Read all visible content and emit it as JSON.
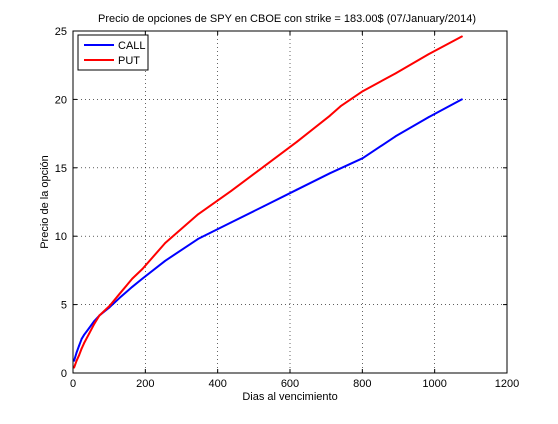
{
  "chart_data": {
    "type": "line",
    "title": "Precio de opciones de SPY en CBOE con strike = 183.00$  (07/January/2014)",
    "xlabel": "Dias al vencimiento",
    "ylabel": "Precio de la opción",
    "xlim": [
      0,
      1200
    ],
    "ylim": [
      0,
      25
    ],
    "xticks": [
      0,
      200,
      400,
      600,
      800,
      1000,
      1200
    ],
    "yticks": [
      0,
      5,
      10,
      15,
      20,
      25
    ],
    "grid": true,
    "legend_position": "top-left",
    "series": [
      {
        "name": "CALL",
        "color": "#0000ff",
        "x": [
          3,
          10,
          17,
          24,
          31,
          45,
          59,
          73,
          101,
          129,
          164,
          192,
          255,
          346,
          437,
          528,
          619,
          710,
          801,
          892,
          983,
          1075
        ],
        "y": [
          0.9,
          1.5,
          2.0,
          2.5,
          2.8,
          3.3,
          3.8,
          4.2,
          4.8,
          5.5,
          6.3,
          6.9,
          8.2,
          9.8,
          11.0,
          12.2,
          13.4,
          14.6,
          15.7,
          17.3,
          18.7,
          20.0
        ]
      },
      {
        "name": "PUT",
        "color": "#ff0000",
        "x": [
          3,
          10,
          17,
          24,
          31,
          45,
          59,
          73,
          101,
          129,
          164,
          192,
          255,
          346,
          437,
          528,
          619,
          710,
          740,
          801,
          892,
          983,
          1075
        ],
        "y": [
          0.4,
          0.9,
          1.3,
          1.8,
          2.2,
          2.9,
          3.6,
          4.2,
          4.9,
          5.8,
          6.9,
          7.6,
          9.5,
          11.6,
          13.3,
          15.1,
          16.9,
          18.8,
          19.5,
          20.6,
          21.9,
          23.3,
          24.6
        ]
      }
    ]
  }
}
